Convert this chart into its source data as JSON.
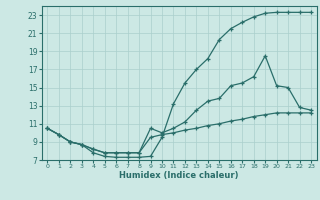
{
  "xlabel": "Humidex (Indice chaleur)",
  "bg_color": "#cce8e4",
  "line_color": "#2a6e6a",
  "grid_color": "#aacfcc",
  "xlim": [
    -0.5,
    23.5
  ],
  "ylim": [
    7,
    24
  ],
  "xticks": [
    0,
    1,
    2,
    3,
    4,
    5,
    6,
    7,
    8,
    9,
    10,
    11,
    12,
    13,
    14,
    15,
    16,
    17,
    18,
    19,
    20,
    21,
    22,
    23
  ],
  "yticks": [
    7,
    9,
    11,
    13,
    15,
    17,
    19,
    21,
    23
  ],
  "line1_x": [
    0,
    1,
    2,
    3,
    4,
    5,
    6,
    7,
    8,
    9,
    10,
    11,
    12,
    13,
    14,
    15,
    16,
    17,
    18,
    19,
    20,
    21,
    22,
    23
  ],
  "line1_y": [
    10.5,
    9.8,
    9.0,
    8.7,
    7.8,
    7.4,
    7.3,
    7.3,
    7.3,
    7.4,
    9.5,
    13.2,
    15.5,
    17.0,
    18.2,
    20.3,
    21.5,
    22.2,
    22.8,
    23.2,
    23.3,
    23.3,
    23.3,
    23.3
  ],
  "line2_x": [
    0,
    1,
    2,
    3,
    4,
    5,
    6,
    7,
    8,
    9,
    10,
    11,
    12,
    13,
    14,
    15,
    16,
    17,
    18,
    19,
    20,
    21,
    22,
    23
  ],
  "line2_y": [
    10.5,
    9.8,
    9.0,
    8.7,
    8.2,
    7.8,
    7.8,
    7.8,
    7.8,
    10.5,
    10.0,
    10.5,
    11.2,
    12.5,
    13.5,
    13.8,
    15.2,
    15.5,
    16.2,
    18.5,
    15.2,
    15.0,
    12.8,
    12.5
  ],
  "line3_x": [
    0,
    1,
    2,
    3,
    4,
    5,
    6,
    7,
    8,
    9,
    10,
    11,
    12,
    13,
    14,
    15,
    16,
    17,
    18,
    19,
    20,
    21,
    22,
    23
  ],
  "line3_y": [
    10.5,
    9.8,
    9.0,
    8.7,
    8.2,
    7.8,
    7.8,
    7.8,
    7.8,
    9.5,
    9.8,
    10.0,
    10.3,
    10.5,
    10.8,
    11.0,
    11.3,
    11.5,
    11.8,
    12.0,
    12.2,
    12.2,
    12.2,
    12.2
  ]
}
